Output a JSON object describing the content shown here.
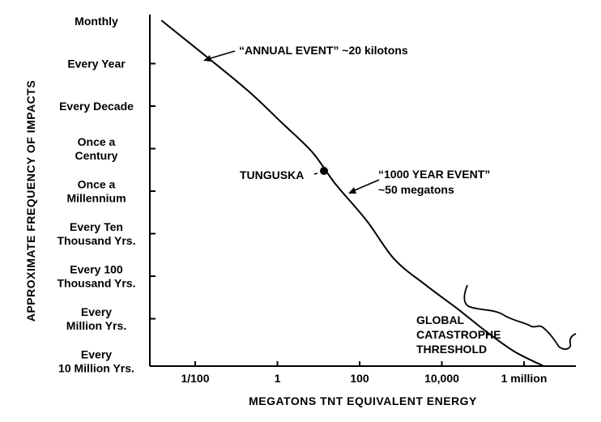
{
  "chart_data": {
    "type": "line",
    "xlabel": "MEGATONS TNT EQUIVALENT ENERGY",
    "ylabel": "APPROXIMATE FREQUENCY OF IMPACTS",
    "x_scale": "log",
    "x_ticks": [
      {
        "value": 0.01,
        "label": "1/100"
      },
      {
        "value": 1,
        "label": "1"
      },
      {
        "value": 100,
        "label": "100"
      },
      {
        "value": 10000,
        "label": "10,000"
      },
      {
        "value": 1000000,
        "label": "1 million"
      }
    ],
    "y_ticks": [
      {
        "label": "Monthly",
        "lines": [
          "Monthly"
        ]
      },
      {
        "label": "Every Year",
        "lines": [
          "Every Year"
        ]
      },
      {
        "label": "Every Decade",
        "lines": [
          "Every Decade"
        ]
      },
      {
        "label": "Once a Century",
        "lines": [
          "Once a",
          "Century"
        ]
      },
      {
        "label": "Once a Millennium",
        "lines": [
          "Once a",
          "Millennium"
        ]
      },
      {
        "label": "Every Ten Thousand Yrs.",
        "lines": [
          "Every Ten",
          "Thousand Yrs."
        ]
      },
      {
        "label": "Every 100 Thousand Yrs.",
        "lines": [
          "Every 100",
          "Thousand Yrs."
        ]
      },
      {
        "label": "Every Million Yrs.",
        "lines": [
          "Every",
          "Million Yrs."
        ]
      },
      {
        "label": "Every 10 Million Yrs.",
        "lines": [
          "Every",
          "10 Million Yrs."
        ]
      }
    ],
    "series": [
      {
        "x": [
          0.0015,
          0.02,
          0.2,
          1.3,
          7,
          25,
          150,
          700,
          4000,
          25000,
          120000,
          600000,
          3000000
        ],
        "y_years_per_impact": [
          0.08,
          0.7,
          4.5,
          25,
          120,
          650,
          5000,
          40000,
          160000,
          600000,
          2000000,
          6000000,
          13000000
        ]
      }
    ],
    "annotations": [
      {
        "text": "“ANNUAL EVENT” ~20 kilotons",
        "x": 0.02,
        "y_years": 1
      },
      {
        "text": "TUNGUSKA",
        "x": 15,
        "y_years": 250,
        "marker": "dot"
      },
      {
        "lines": [
          "“1000 YEAR EVENT”",
          "~50 megatons"
        ],
        "x": 50,
        "y_years": 1000
      },
      {
        "lines": [
          "GLOBAL",
          "CATASTROPHE",
          "THRESHOLD"
        ],
        "region": "threshold"
      }
    ]
  }
}
